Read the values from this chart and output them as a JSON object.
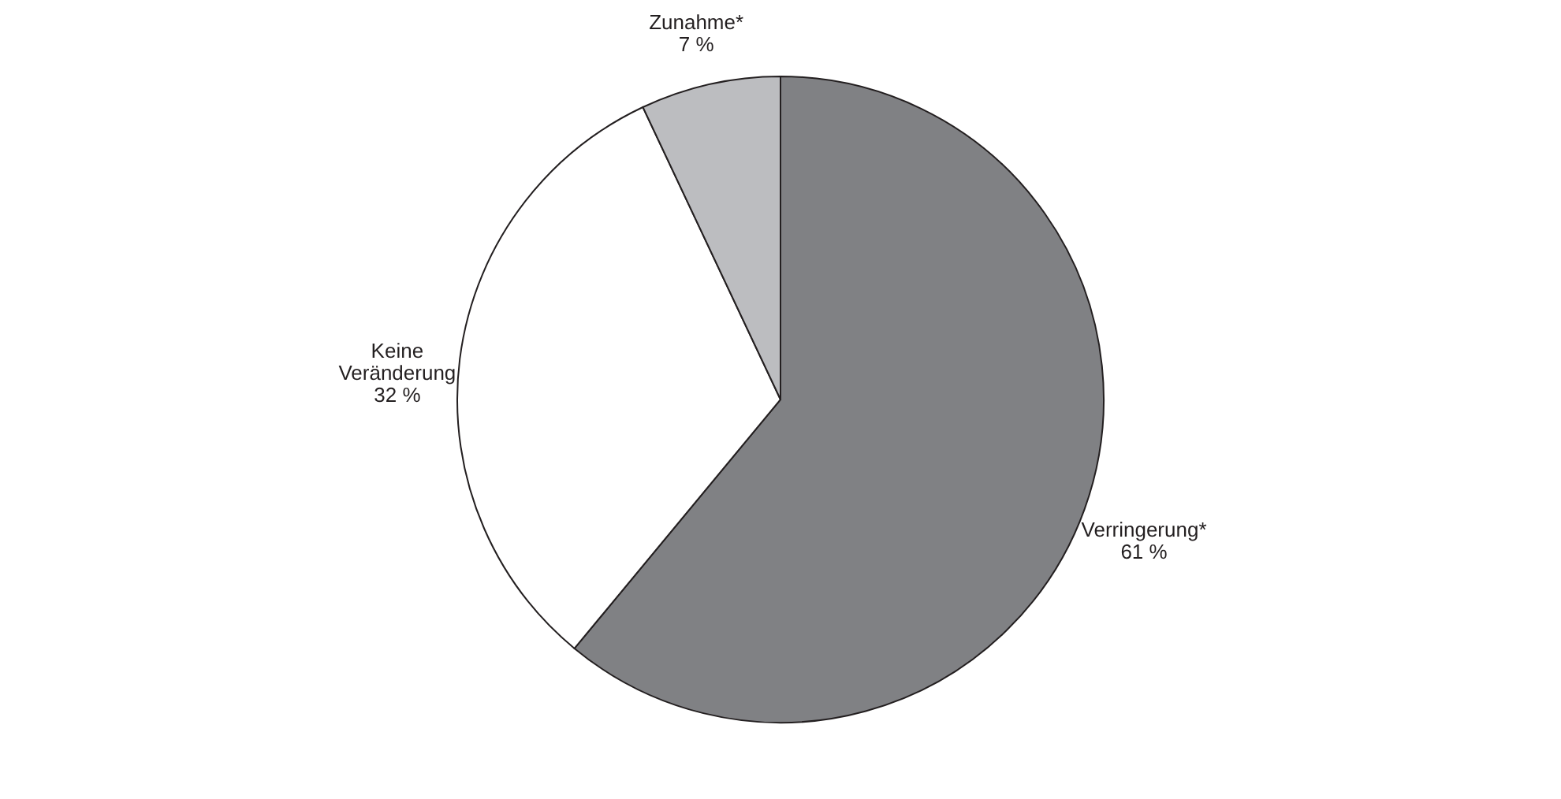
{
  "chart_data": {
    "type": "pie",
    "categories": [
      "Verringerung*",
      "Keine Veränderung",
      "Zunahme*"
    ],
    "values": [
      61,
      32,
      7
    ],
    "colors": [
      "#808184",
      "#ffffff",
      "#bcbdc0"
    ],
    "value_labels": [
      "61 %",
      "32 %",
      "7 %"
    ],
    "legend": false
  }
}
